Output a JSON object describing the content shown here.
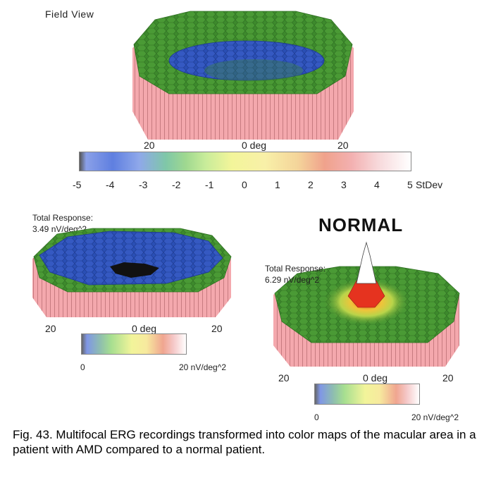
{
  "field_view": {
    "title": "Field View",
    "axis": {
      "left": "20",
      "center": "0 deg",
      "right": "20"
    },
    "scale_ticks": [
      "-5",
      "-4",
      "-3",
      "-2",
      "-1",
      "0",
      "1",
      "2",
      "3",
      "4",
      "5"
    ],
    "scale_unit": "StDev"
  },
  "amd_plot": {
    "total_response_label": "Total Response:",
    "total_response_value": "3.49 nV/deg^2",
    "axis": {
      "left": "20",
      "center": "0 deg",
      "right": "20"
    },
    "scale_min": "0",
    "scale_max": "20 nV/deg^2"
  },
  "normal_plot": {
    "heading": "NORMAL",
    "total_response_label": "Total Response:",
    "total_response_value": "6.29 nV/deg^2",
    "axis": {
      "left": "20",
      "center": "0 deg",
      "right": "20"
    },
    "scale_min": "0",
    "scale_max": "20 nV/deg^2"
  },
  "caption": "Fig. 43. Multifocal ERG recordings transformed into color maps of the macular area in a patient with AMD compared to a normal patient.",
  "colors": {
    "base_pink": "#f2a3a8",
    "green": "#3f8f2f",
    "blue": "#2c4fb8",
    "dark": "#111111",
    "yellow": "#e8e04a",
    "red": "#e5331f"
  }
}
